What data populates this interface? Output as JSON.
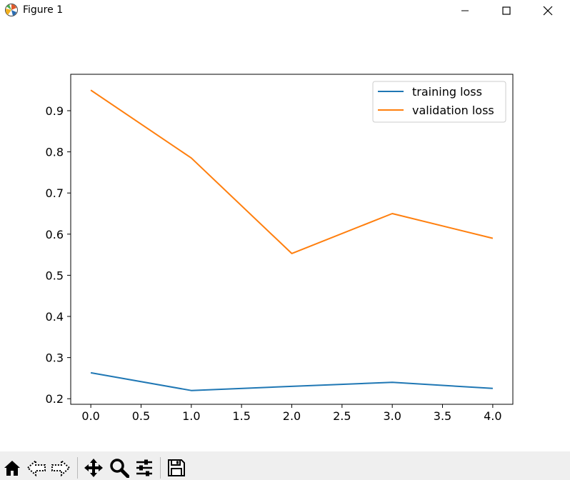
{
  "window": {
    "title": "Figure 1",
    "icons": {
      "app": "matplotlib-icon",
      "minimize": "minimize-icon",
      "maximize": "maximize-icon",
      "close": "close-icon"
    }
  },
  "toolbar": {
    "buttons": [
      {
        "icon": "home-icon"
      },
      {
        "icon": "back-arrow-icon"
      },
      {
        "icon": "forward-arrow-icon"
      },
      {
        "icon": "pan-icon"
      },
      {
        "icon": "zoom-icon"
      },
      {
        "icon": "configure-subplots-icon"
      },
      {
        "icon": "save-icon"
      }
    ]
  },
  "chart_data": {
    "type": "line",
    "x": [
      0,
      1,
      2,
      3,
      4
    ],
    "series": [
      {
        "name": "training loss",
        "values": [
          0.263,
          0.22,
          0.23,
          0.24,
          0.225
        ],
        "color": "#1f77b4"
      },
      {
        "name": "validation loss",
        "values": [
          0.95,
          0.785,
          0.553,
          0.65,
          0.59
        ],
        "color": "#ff7f0e"
      }
    ],
    "title": "",
    "xlabel": "",
    "ylabel": "",
    "xlim": [
      -0.2,
      4.2
    ],
    "ylim": [
      0.1865,
      0.9885
    ],
    "xticks": [
      0.0,
      0.5,
      1.0,
      1.5,
      2.0,
      2.5,
      3.0,
      3.5,
      4.0
    ],
    "xtick_labels": [
      "0.0",
      "0.5",
      "1.0",
      "1.5",
      "2.0",
      "2.5",
      "3.0",
      "3.5",
      "4.0"
    ],
    "yticks": [
      0.2,
      0.3,
      0.4,
      0.5,
      0.6,
      0.7,
      0.8,
      0.9
    ],
    "ytick_labels": [
      "0.2",
      "0.3",
      "0.4",
      "0.5",
      "0.6",
      "0.7",
      "0.8",
      "0.9"
    ],
    "grid": false,
    "legend": "top-right"
  }
}
